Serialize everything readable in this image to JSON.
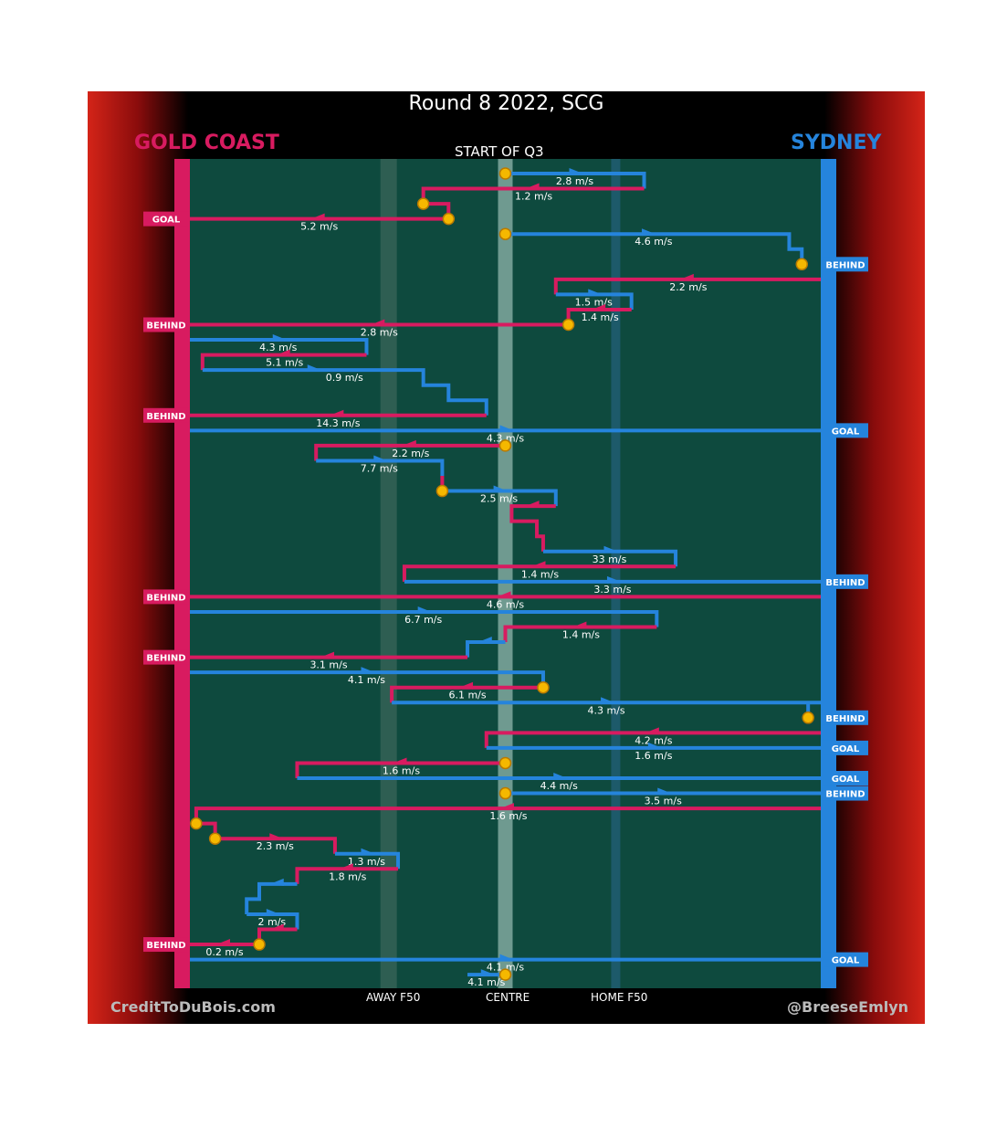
{
  "title": "Round 8 2022, SCG",
  "teams": {
    "home_left": "GOLD COAST",
    "away_right": "SYDNEY"
  },
  "quarter_label": "START OF Q3",
  "footer": {
    "credit": "CreditToDuBois.com",
    "handle": "@BreeseEmlyn"
  },
  "zones": [
    "AWAY F50",
    "CENTRE",
    "HOME F50"
  ],
  "colors": {
    "gold_coast": "#d81b60",
    "sydney": "#2584dc",
    "field": "#0e4a3e",
    "stoppage": "#f5b800"
  },
  "chart_data": {
    "type": "line",
    "x_axis": "field position (0 = Gold Coast goal, 100 = Sydney goal)",
    "chains": [
      {
        "team": "SYD",
        "start": 50,
        "speed": "2.8 m/s",
        "points": [
          [
            50,
            0
          ],
          [
            72,
            0
          ],
          [
            72,
            1
          ]
        ],
        "result": ""
      },
      {
        "team": "GC",
        "start": 72,
        "speed": "1.2 m/s",
        "points": [
          [
            72,
            1
          ],
          [
            37,
            1
          ],
          [
            37,
            2
          ],
          [
            41,
            2
          ],
          [
            41,
            3
          ]
        ],
        "result": ""
      },
      {
        "team": "GC",
        "start": 41,
        "speed": "5.2 m/s",
        "points": [
          [
            41,
            3
          ],
          [
            0,
            3
          ]
        ],
        "result": "GOAL"
      },
      {
        "team": "SYD",
        "start": 50,
        "speed": "4.6 m/s",
        "points": [
          [
            50,
            4
          ],
          [
            95,
            4
          ],
          [
            95,
            5
          ],
          [
            97,
            5
          ],
          [
            97,
            6
          ]
        ],
        "result": "BEHIND"
      },
      {
        "team": "GC",
        "start": 100,
        "speed": "2.2 m/s",
        "points": [
          [
            100,
            7
          ],
          [
            58,
            7
          ],
          [
            58,
            8
          ]
        ],
        "result": ""
      },
      {
        "team": "SYD",
        "start": 58,
        "speed": "1.5 m/s",
        "points": [
          [
            58,
            8
          ],
          [
            70,
            8
          ],
          [
            70,
            9
          ]
        ],
        "result": ""
      },
      {
        "team": "GC",
        "start": 70,
        "speed": "1.4 m/s",
        "points": [
          [
            70,
            9
          ],
          [
            60,
            9
          ],
          [
            60,
            10
          ]
        ],
        "result": ""
      },
      {
        "team": "GC",
        "start": 60,
        "speed": "2.8 m/s",
        "points": [
          [
            60,
            10
          ],
          [
            0,
            10
          ]
        ],
        "result": "BEHIND"
      },
      {
        "team": "SYD",
        "start": 0,
        "speed": "4.3 m/s",
        "points": [
          [
            0,
            11
          ],
          [
            28,
            11
          ],
          [
            28,
            12
          ]
        ],
        "result": ""
      },
      {
        "team": "GC",
        "start": 28,
        "speed": "5.1 m/s",
        "points": [
          [
            28,
            12
          ],
          [
            2,
            12
          ],
          [
            2,
            13
          ]
        ],
        "result": ""
      },
      {
        "team": "SYD",
        "start": 2,
        "speed": "0.9 m/s",
        "points": [
          [
            2,
            13
          ],
          [
            37,
            13
          ],
          [
            37,
            14
          ],
          [
            41,
            14
          ],
          [
            41,
            15
          ],
          [
            47,
            15
          ],
          [
            47,
            16
          ]
        ],
        "result": ""
      },
      {
        "team": "GC",
        "start": 47,
        "speed": "14.3 m/s",
        "points": [
          [
            47,
            16
          ],
          [
            0,
            16
          ]
        ],
        "result": "BEHIND"
      },
      {
        "team": "SYD",
        "start": 0,
        "speed": "4.3 m/s",
        "points": [
          [
            0,
            17
          ],
          [
            100,
            17
          ]
        ],
        "result": "GOAL"
      },
      {
        "team": "GC",
        "start": 50,
        "speed": "2.2 m/s",
        "points": [
          [
            50,
            18
          ],
          [
            20,
            18
          ],
          [
            20,
            19
          ]
        ],
        "result": ""
      },
      {
        "team": "SYD",
        "start": 20,
        "speed": "7.7 m/s",
        "points": [
          [
            20,
            19
          ],
          [
            40,
            19
          ],
          [
            40,
            20
          ]
        ],
        "result": ""
      },
      {
        "team": "GC",
        "start": 40,
        "speed": "",
        "points": [
          [
            40,
            20
          ],
          [
            40,
            21
          ]
        ],
        "result": ""
      },
      {
        "team": "SYD",
        "start": 40,
        "speed": "2.5 m/s",
        "points": [
          [
            40,
            21
          ],
          [
            58,
            21
          ],
          [
            58,
            22
          ]
        ],
        "result": ""
      },
      {
        "team": "GC",
        "start": 58,
        "speed": "",
        "points": [
          [
            58,
            22
          ],
          [
            51,
            22
          ],
          [
            51,
            23
          ],
          [
            55,
            23
          ],
          [
            55,
            24
          ],
          [
            56,
            24
          ],
          [
            56,
            25
          ]
        ],
        "result": ""
      },
      {
        "team": "SYD",
        "start": 56,
        "speed": "33 m/s",
        "points": [
          [
            56,
            25
          ],
          [
            77,
            25
          ],
          [
            77,
            26
          ]
        ],
        "result": ""
      },
      {
        "team": "GC",
        "start": 77,
        "speed": "1.4 m/s",
        "points": [
          [
            77,
            26
          ],
          [
            34,
            26
          ],
          [
            34,
            27
          ]
        ],
        "result": ""
      },
      {
        "team": "SYD",
        "start": 34,
        "speed": "3.3 m/s",
        "points": [
          [
            34,
            27
          ],
          [
            100,
            27
          ]
        ],
        "result": "BEHIND"
      },
      {
        "team": "GC",
        "start": 100,
        "speed": "4.6 m/s",
        "points": [
          [
            100,
            28
          ],
          [
            0,
            28
          ]
        ],
        "result": "BEHIND"
      },
      {
        "team": "SYD",
        "start": 0,
        "speed": "6.7 m/s",
        "points": [
          [
            0,
            29
          ],
          [
            74,
            29
          ],
          [
            74,
            30
          ]
        ],
        "result": ""
      },
      {
        "team": "GC",
        "start": 74,
        "speed": "1.4 m/s",
        "points": [
          [
            74,
            30
          ],
          [
            50,
            30
          ],
          [
            50,
            31
          ]
        ],
        "result": ""
      },
      {
        "team": "SYD",
        "start": 50,
        "speed": "",
        "points": [
          [
            50,
            31
          ],
          [
            44,
            31
          ],
          [
            44,
            32
          ]
        ],
        "result": ""
      },
      {
        "team": "GC",
        "start": 44,
        "speed": "3.1 m/s",
        "points": [
          [
            44,
            32
          ],
          [
            0,
            32
          ]
        ],
        "result": "BEHIND"
      },
      {
        "team": "SYD",
        "start": 0,
        "speed": "4.1 m/s",
        "points": [
          [
            0,
            33
          ],
          [
            56,
            33
          ],
          [
            56,
            34
          ]
        ],
        "result": ""
      },
      {
        "team": "GC",
        "start": 56,
        "speed": "6.1 m/s",
        "points": [
          [
            56,
            34
          ],
          [
            32,
            34
          ],
          [
            32,
            35
          ]
        ],
        "result": ""
      },
      {
        "team": "SYD",
        "start": 32,
        "speed": "4.3 m/s",
        "points": [
          [
            32,
            35
          ],
          [
            100,
            35
          ],
          [
            98,
            35
          ],
          [
            98,
            36
          ]
        ],
        "result": "BEHIND"
      },
      {
        "team": "GC",
        "start": 100,
        "speed": "4.2 m/s",
        "points": [
          [
            100,
            37
          ],
          [
            47,
            37
          ],
          [
            47,
            38
          ]
        ],
        "result": ""
      },
      {
        "team": "SYD",
        "start": 47,
        "speed": "1.6 m/s",
        "points": [
          [
            47,
            38
          ],
          [
            100,
            38
          ]
        ],
        "result": "GOAL"
      },
      {
        "team": "GC",
        "start": 50,
        "speed": "1.6 m/s",
        "points": [
          [
            50,
            39
          ],
          [
            17,
            39
          ],
          [
            17,
            40
          ]
        ],
        "result": ""
      },
      {
        "team": "SYD",
        "start": 17,
        "speed": "4.4 m/s",
        "points": [
          [
            17,
            40
          ],
          [
            100,
            40
          ]
        ],
        "result": "GOAL"
      },
      {
        "team": "SYD",
        "start": 50,
        "speed": "3.5 m/s",
        "points": [
          [
            50,
            41
          ],
          [
            100,
            41
          ]
        ],
        "result": "BEHIND"
      },
      {
        "team": "GC",
        "start": 100,
        "speed": "1.6 m/s",
        "points": [
          [
            100,
            42
          ],
          [
            1,
            42
          ],
          [
            1,
            43
          ]
        ],
        "result": ""
      },
      {
        "team": "GC",
        "start": 1,
        "speed": "",
        "points": [
          [
            1,
            43
          ],
          [
            4,
            43
          ],
          [
            4,
            44
          ]
        ],
        "result": ""
      },
      {
        "team": "GC",
        "start": 4,
        "speed": "2.3 m/s",
        "points": [
          [
            4,
            44
          ],
          [
            23,
            44
          ],
          [
            23,
            45
          ]
        ],
        "result": ""
      },
      {
        "team": "SYD",
        "start": 23,
        "speed": "1.3 m/s",
        "points": [
          [
            23,
            45
          ],
          [
            33,
            45
          ],
          [
            33,
            46
          ]
        ],
        "result": ""
      },
      {
        "team": "GC",
        "start": 33,
        "speed": "1.8 m/s",
        "points": [
          [
            33,
            46
          ],
          [
            17,
            46
          ],
          [
            17,
            47
          ]
        ],
        "result": ""
      },
      {
        "team": "SYD",
        "start": 17,
        "speed": "",
        "points": [
          [
            17,
            47
          ],
          [
            11,
            47
          ],
          [
            11,
            48
          ],
          [
            9,
            48
          ],
          [
            9,
            49
          ]
        ],
        "result": ""
      },
      {
        "team": "SYD",
        "start": 9,
        "speed": "2 m/s",
        "points": [
          [
            9,
            49
          ],
          [
            17,
            49
          ],
          [
            17,
            50
          ]
        ],
        "result": ""
      },
      {
        "team": "GC",
        "start": 17,
        "speed": "",
        "points": [
          [
            17,
            50
          ],
          [
            11,
            50
          ],
          [
            11,
            51
          ]
        ],
        "result": ""
      },
      {
        "team": "GC",
        "start": 11,
        "speed": "0.2 m/s",
        "points": [
          [
            11,
            51
          ],
          [
            0,
            51
          ]
        ],
        "result": "BEHIND"
      },
      {
        "team": "SYD",
        "start": 0,
        "speed": "4.1 m/s",
        "points": [
          [
            0,
            52
          ],
          [
            100,
            52
          ]
        ],
        "result": "GOAL"
      },
      {
        "team": "SYD",
        "start": 44,
        "speed": "4.1 m/s",
        "points": [
          [
            44,
            53
          ],
          [
            50,
            53
          ]
        ],
        "result": ""
      }
    ],
    "stoppages": [
      [
        50,
        0
      ],
      [
        37,
        2
      ],
      [
        41,
        3
      ],
      [
        50,
        4
      ],
      [
        97,
        6
      ],
      [
        60,
        10
      ],
      [
        50,
        18
      ],
      [
        40,
        21
      ],
      [
        56,
        34
      ],
      [
        98,
        36
      ],
      [
        50,
        39
      ],
      [
        50,
        41
      ],
      [
        1,
        43
      ],
      [
        4,
        44
      ],
      [
        11,
        51
      ],
      [
        50,
        53
      ]
    ]
  }
}
